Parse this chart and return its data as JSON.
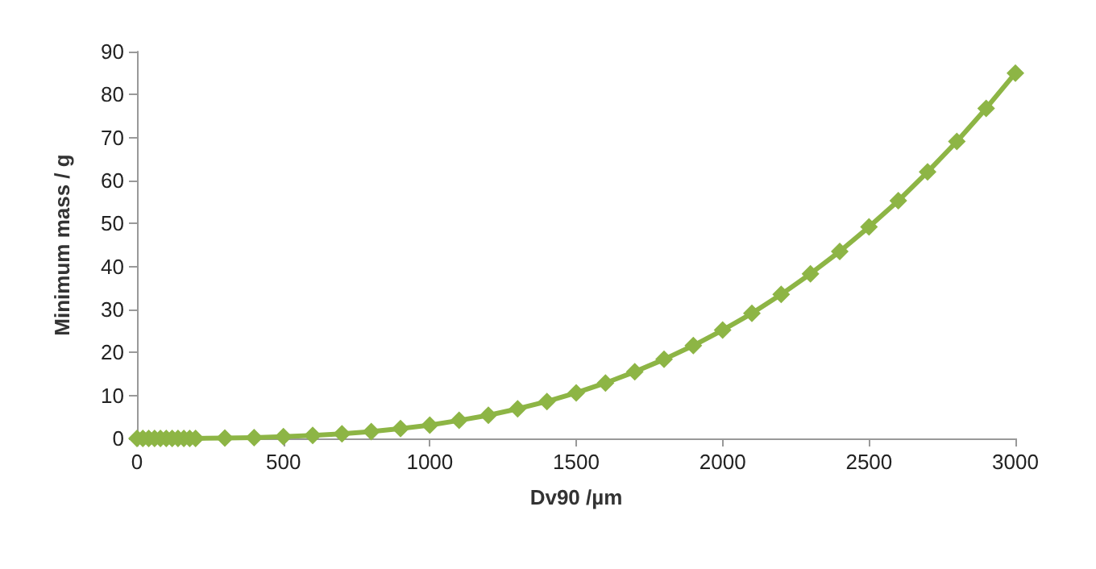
{
  "chart_data": {
    "type": "line",
    "xlabel": "Dv90 /µm",
    "ylabel": "Minimum mass / g",
    "x": [
      0,
      20,
      40,
      60,
      80,
      100,
      120,
      140,
      160,
      180,
      200,
      300,
      400,
      500,
      600,
      700,
      800,
      900,
      1000,
      1100,
      1200,
      1300,
      1400,
      1500,
      1600,
      1700,
      1800,
      1900,
      2000,
      2100,
      2200,
      2300,
      2400,
      2500,
      2600,
      2700,
      2800,
      2900,
      3000
    ],
    "series": [
      {
        "color": "#8db545",
        "values": [
          0,
          0,
          0,
          0,
          0,
          0,
          0,
          0,
          0,
          0,
          0,
          0.1,
          0.2,
          0.4,
          0.7,
          1.1,
          1.6,
          2.3,
          3.1,
          4.2,
          5.4,
          6.9,
          8.6,
          10.6,
          12.9,
          15.5,
          18.4,
          21.6,
          25.2,
          29.1,
          33.5,
          38.3,
          43.5,
          49.2,
          55.3,
          62.0,
          69.1,
          76.8,
          85
        ]
      }
    ],
    "xlim": [
      0,
      3000
    ],
    "xticks": [
      0,
      500,
      1000,
      1500,
      2000,
      2500,
      3000
    ],
    "ylim": [
      0,
      90
    ],
    "yticks": [
      0,
      10,
      20,
      30,
      40,
      50,
      60,
      70,
      80,
      90
    ],
    "grid": false,
    "marker": "diamond",
    "line_style": "solid"
  }
}
